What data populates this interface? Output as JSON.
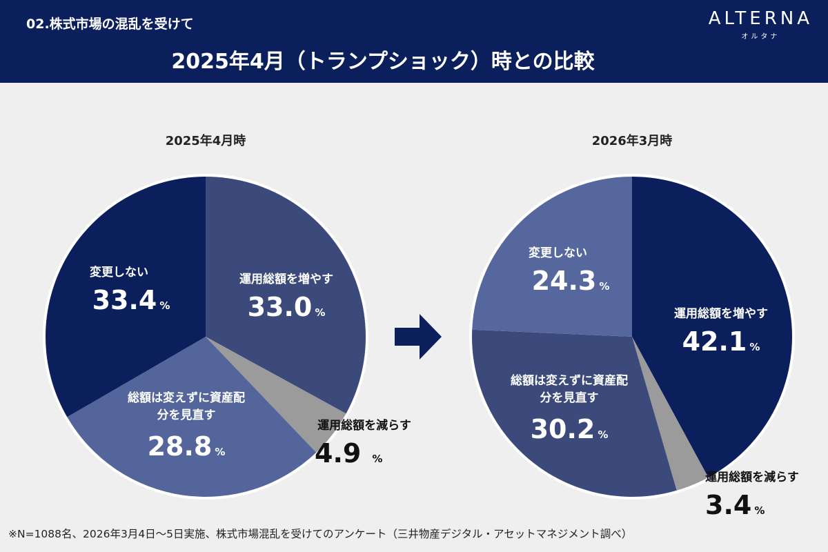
{
  "header": {
    "section": "02.株式市場の混乱を受けて",
    "title": "2025年4月（トランプショック）時との比較",
    "logo": "ALTERNA",
    "logo_sub": "オルタナ"
  },
  "footnote": "※N=1088名、2026年3月4日〜5日実施、株式市場混乱を受けてのアンケート（三井物産デジタル・アセットマネジメント調べ）",
  "unit": "%",
  "chart_data": [
    {
      "type": "pie",
      "title": "2025年4月時",
      "slices": [
        {
          "label": "運用総額を増やす",
          "value": 33.0,
          "display": "33.0",
          "color": "#3b4a7b"
        },
        {
          "label": "運用総額を減らす",
          "value": 4.9,
          "display": "4.9",
          "color": "#9b9b9b"
        },
        {
          "label": "総額は変えずに資産配分を見直す",
          "value": 28.8,
          "display": "28.8",
          "color": "#53659a"
        },
        {
          "label": "変更しない",
          "value": 33.4,
          "display": "33.4",
          "color": "#0b1f5c"
        }
      ]
    },
    {
      "type": "pie",
      "title": "2026年3月時",
      "slices": [
        {
          "label": "運用総額を増やす",
          "value": 42.1,
          "display": "42.1",
          "color": "#0b1f5c"
        },
        {
          "label": "運用総額を減らす",
          "value": 3.4,
          "display": "3.4",
          "color": "#9b9b9b"
        },
        {
          "label": "総額は変えずに資産配分を見直す",
          "value": 30.2,
          "display": "30.2",
          "color": "#3b4a7b"
        },
        {
          "label": "変更しない",
          "value": 24.3,
          "display": "24.3",
          "color": "#55679c"
        }
      ]
    }
  ]
}
